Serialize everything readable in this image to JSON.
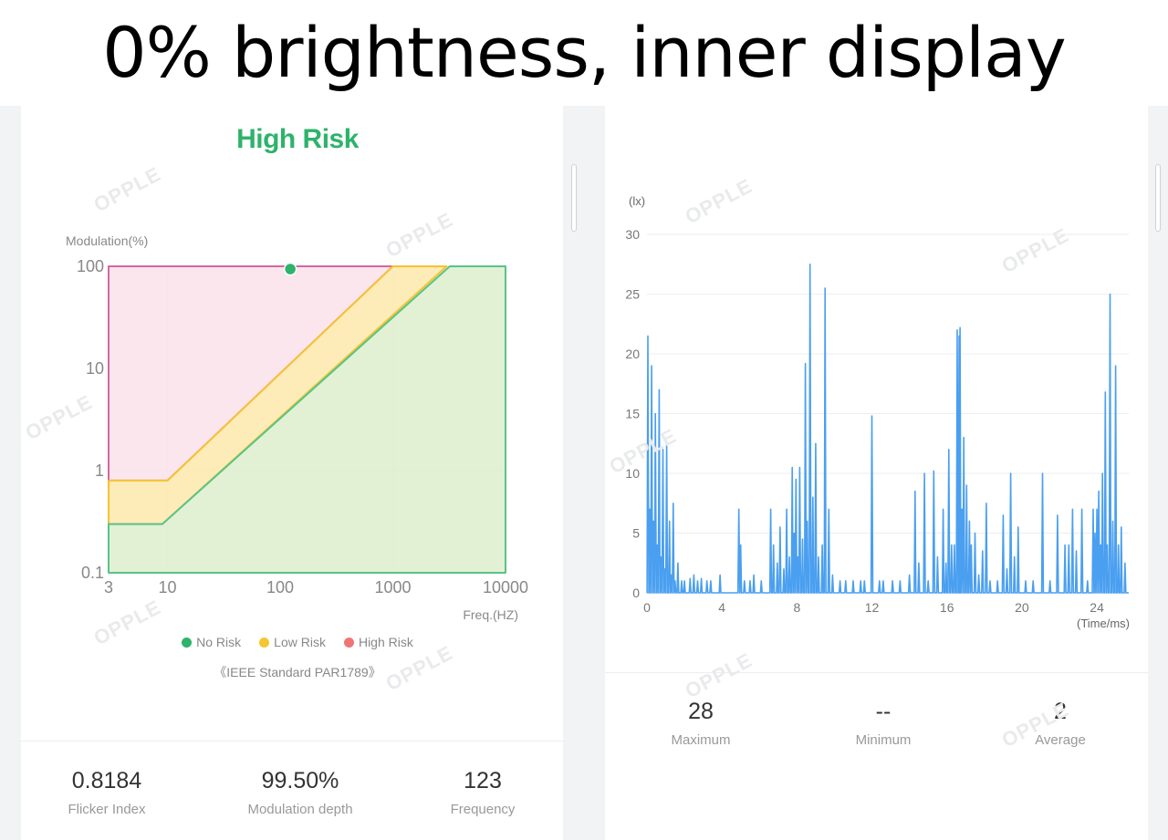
{
  "header": {
    "title": "0% brightness, inner display"
  },
  "left_panel": {
    "risk_level": "High Risk",
    "legend": [
      {
        "label": "No Risk",
        "color": "#2db36b"
      },
      {
        "label": "Low Risk",
        "color": "#f7c531"
      },
      {
        "label": "High Risk",
        "color": "#f07474"
      }
    ],
    "standard_note": "《IEEE Standard PAR1789》",
    "stats": [
      {
        "value": "0.8184",
        "label": "Flicker Index"
      },
      {
        "value": "99.50%",
        "label": "Modulation depth"
      },
      {
        "value": "123",
        "label": "Frequency"
      }
    ]
  },
  "right_panel": {
    "stats": [
      {
        "value": "28",
        "label": "Maximum"
      },
      {
        "value": "--",
        "label": "Minimum"
      },
      {
        "value": "2",
        "label": "Average"
      }
    ]
  },
  "watermark_text": "OPPLE",
  "chart_data": [
    {
      "type": "scatter",
      "title": "",
      "ylabel": "Modulation(%)",
      "xlabel": "Freq.(HZ)",
      "x_scale": "log",
      "y_scale": "log",
      "xlim": [
        3,
        10000
      ],
      "ylim": [
        0.1,
        100
      ],
      "x_ticks": [
        "3",
        "10",
        "100",
        "1000",
        "10000"
      ],
      "y_ticks": [
        "0.1",
        "1",
        "10",
        "100"
      ],
      "grid": true,
      "regions": [
        {
          "name": "High Risk",
          "color": "#f07474",
          "polygon": [
            [
              3,
              100
            ],
            [
              3,
              0.8
            ],
            [
              10,
              0.8
            ],
            [
              1000,
              100
            ]
          ]
        },
        {
          "name": "Low Risk",
          "color": "#f7c531",
          "polygon": [
            [
              3,
              0.8
            ],
            [
              3,
              0.3
            ],
            [
              9,
              0.3
            ],
            [
              3000,
              100
            ],
            [
              1000,
              100
            ],
            [
              10,
              0.8
            ]
          ]
        },
        {
          "name": "No Risk",
          "color": "#2db36b",
          "polygon": [
            [
              3,
              0.3
            ],
            [
              3,
              0.1
            ],
            [
              10000,
              0.1
            ],
            [
              10000,
              100
            ],
            [
              3200,
              100
            ],
            [
              9,
              0.3
            ]
          ]
        }
      ],
      "points": [
        {
          "x": 123,
          "y": 99.5
        }
      ],
      "point_color": "#2db36b"
    },
    {
      "type": "line",
      "title": "",
      "ylabel": "(lx)",
      "xlabel": "(Time/ms)",
      "xlim": [
        0,
        25.7
      ],
      "ylim": [
        0,
        30
      ],
      "x_ticks": [
        "0",
        "4",
        "8",
        "12",
        "16",
        "20",
        "24"
      ],
      "y_ticks": [
        "0",
        "5",
        "10",
        "15",
        "20",
        "25",
        "30"
      ],
      "grid": true,
      "line_color": "#4a9ff0",
      "peaks": [
        [
          0.05,
          21.5
        ],
        [
          0.15,
          7
        ],
        [
          0.25,
          19
        ],
        [
          0.35,
          6
        ],
        [
          0.45,
          15
        ],
        [
          0.55,
          4
        ],
        [
          0.65,
          17
        ],
        [
          0.75,
          3
        ],
        [
          0.85,
          12
        ],
        [
          0.95,
          2
        ],
        [
          1.05,
          12.5
        ],
        [
          1.2,
          6
        ],
        [
          1.3,
          1.5
        ],
        [
          1.4,
          7.5
        ],
        [
          1.5,
          1
        ],
        [
          1.65,
          2.5
        ],
        [
          1.85,
          1
        ],
        [
          2.0,
          1
        ],
        [
          2.3,
          1.2
        ],
        [
          2.5,
          1.5
        ],
        [
          2.7,
          1
        ],
        [
          2.9,
          1.2
        ],
        [
          3.2,
          1
        ],
        [
          3.4,
          1
        ],
        [
          3.9,
          1.5
        ],
        [
          4.9,
          7
        ],
        [
          5.0,
          4
        ],
        [
          5.2,
          1
        ],
        [
          5.5,
          1
        ],
        [
          5.7,
          1.5
        ],
        [
          6.1,
          1
        ],
        [
          6.6,
          7
        ],
        [
          6.75,
          4
        ],
        [
          6.95,
          2.5
        ],
        [
          7.1,
          5.5
        ],
        [
          7.3,
          2
        ],
        [
          7.45,
          7
        ],
        [
          7.6,
          3
        ],
        [
          7.75,
          10.5
        ],
        [
          7.85,
          5
        ],
        [
          7.95,
          9.5
        ],
        [
          8.05,
          3
        ],
        [
          8.15,
          10.5
        ],
        [
          8.3,
          4.5
        ],
        [
          8.45,
          19.2
        ],
        [
          8.55,
          6
        ],
        [
          8.7,
          27.5
        ],
        [
          8.85,
          8
        ],
        [
          9.0,
          12.5
        ],
        [
          9.15,
          3
        ],
        [
          9.35,
          4
        ],
        [
          9.5,
          25.5
        ],
        [
          9.7,
          7
        ],
        [
          9.9,
          1.5
        ],
        [
          10.3,
          1
        ],
        [
          10.6,
          1
        ],
        [
          11.0,
          1
        ],
        [
          11.4,
          1
        ],
        [
          11.6,
          1
        ],
        [
          12.0,
          14.8
        ],
        [
          12.4,
          1
        ],
        [
          12.6,
          1
        ],
        [
          13.1,
          1
        ],
        [
          13.5,
          1
        ],
        [
          14.0,
          1.5
        ],
        [
          14.3,
          8.5
        ],
        [
          14.5,
          2.5
        ],
        [
          14.8,
          10
        ],
        [
          15.0,
          1
        ],
        [
          15.3,
          10.2
        ],
        [
          15.5,
          3
        ],
        [
          15.8,
          7
        ],
        [
          15.95,
          2.5
        ],
        [
          16.1,
          12
        ],
        [
          16.25,
          4
        ],
        [
          16.4,
          4
        ],
        [
          16.55,
          22
        ],
        [
          16.65,
          21.5
        ],
        [
          16.7,
          22.2
        ],
        [
          16.8,
          7
        ],
        [
          16.9,
          13
        ],
        [
          17.05,
          9
        ],
        [
          17.2,
          6
        ],
        [
          17.3,
          4
        ],
        [
          17.5,
          5
        ],
        [
          17.7,
          1.5
        ],
        [
          17.9,
          3.5
        ],
        [
          18.1,
          7.5
        ],
        [
          18.3,
          1
        ],
        [
          18.7,
          1
        ],
        [
          19.0,
          6.5
        ],
        [
          19.2,
          2
        ],
        [
          19.4,
          10
        ],
        [
          19.6,
          3
        ],
        [
          19.8,
          5.5
        ],
        [
          20.2,
          1
        ],
        [
          20.6,
          1
        ],
        [
          21.1,
          10
        ],
        [
          21.5,
          1
        ],
        [
          21.9,
          6.5
        ],
        [
          22.3,
          4
        ],
        [
          22.5,
          4
        ],
        [
          22.7,
          7
        ],
        [
          22.9,
          3.5
        ],
        [
          23.2,
          7
        ],
        [
          23.5,
          1
        ],
        [
          23.8,
          7
        ],
        [
          23.9,
          5
        ],
        [
          24.0,
          7
        ],
        [
          24.1,
          8.5
        ],
        [
          24.2,
          4
        ],
        [
          24.3,
          10
        ],
        [
          24.45,
          16.8
        ],
        [
          24.55,
          4
        ],
        [
          24.7,
          25
        ],
        [
          24.85,
          6
        ],
        [
          25.0,
          19
        ],
        [
          25.15,
          4
        ],
        [
          25.3,
          5.5
        ],
        [
          25.5,
          2.5
        ]
      ]
    }
  ]
}
